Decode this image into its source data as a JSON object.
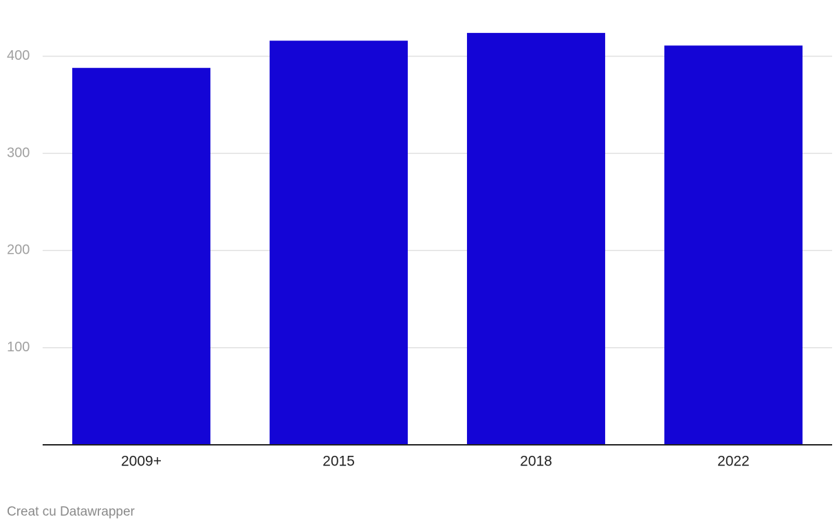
{
  "chart_data": {
    "type": "bar",
    "categories": [
      "2009+",
      "2015",
      "2018",
      "2022"
    ],
    "values": [
      388,
      416,
      424,
      411
    ],
    "color": "#1405d6",
    "ylim": [
      0,
      430
    ],
    "yticks": [
      100,
      200,
      300,
      400
    ],
    "grid": true,
    "credit": "Creat cu Datawrapper"
  }
}
